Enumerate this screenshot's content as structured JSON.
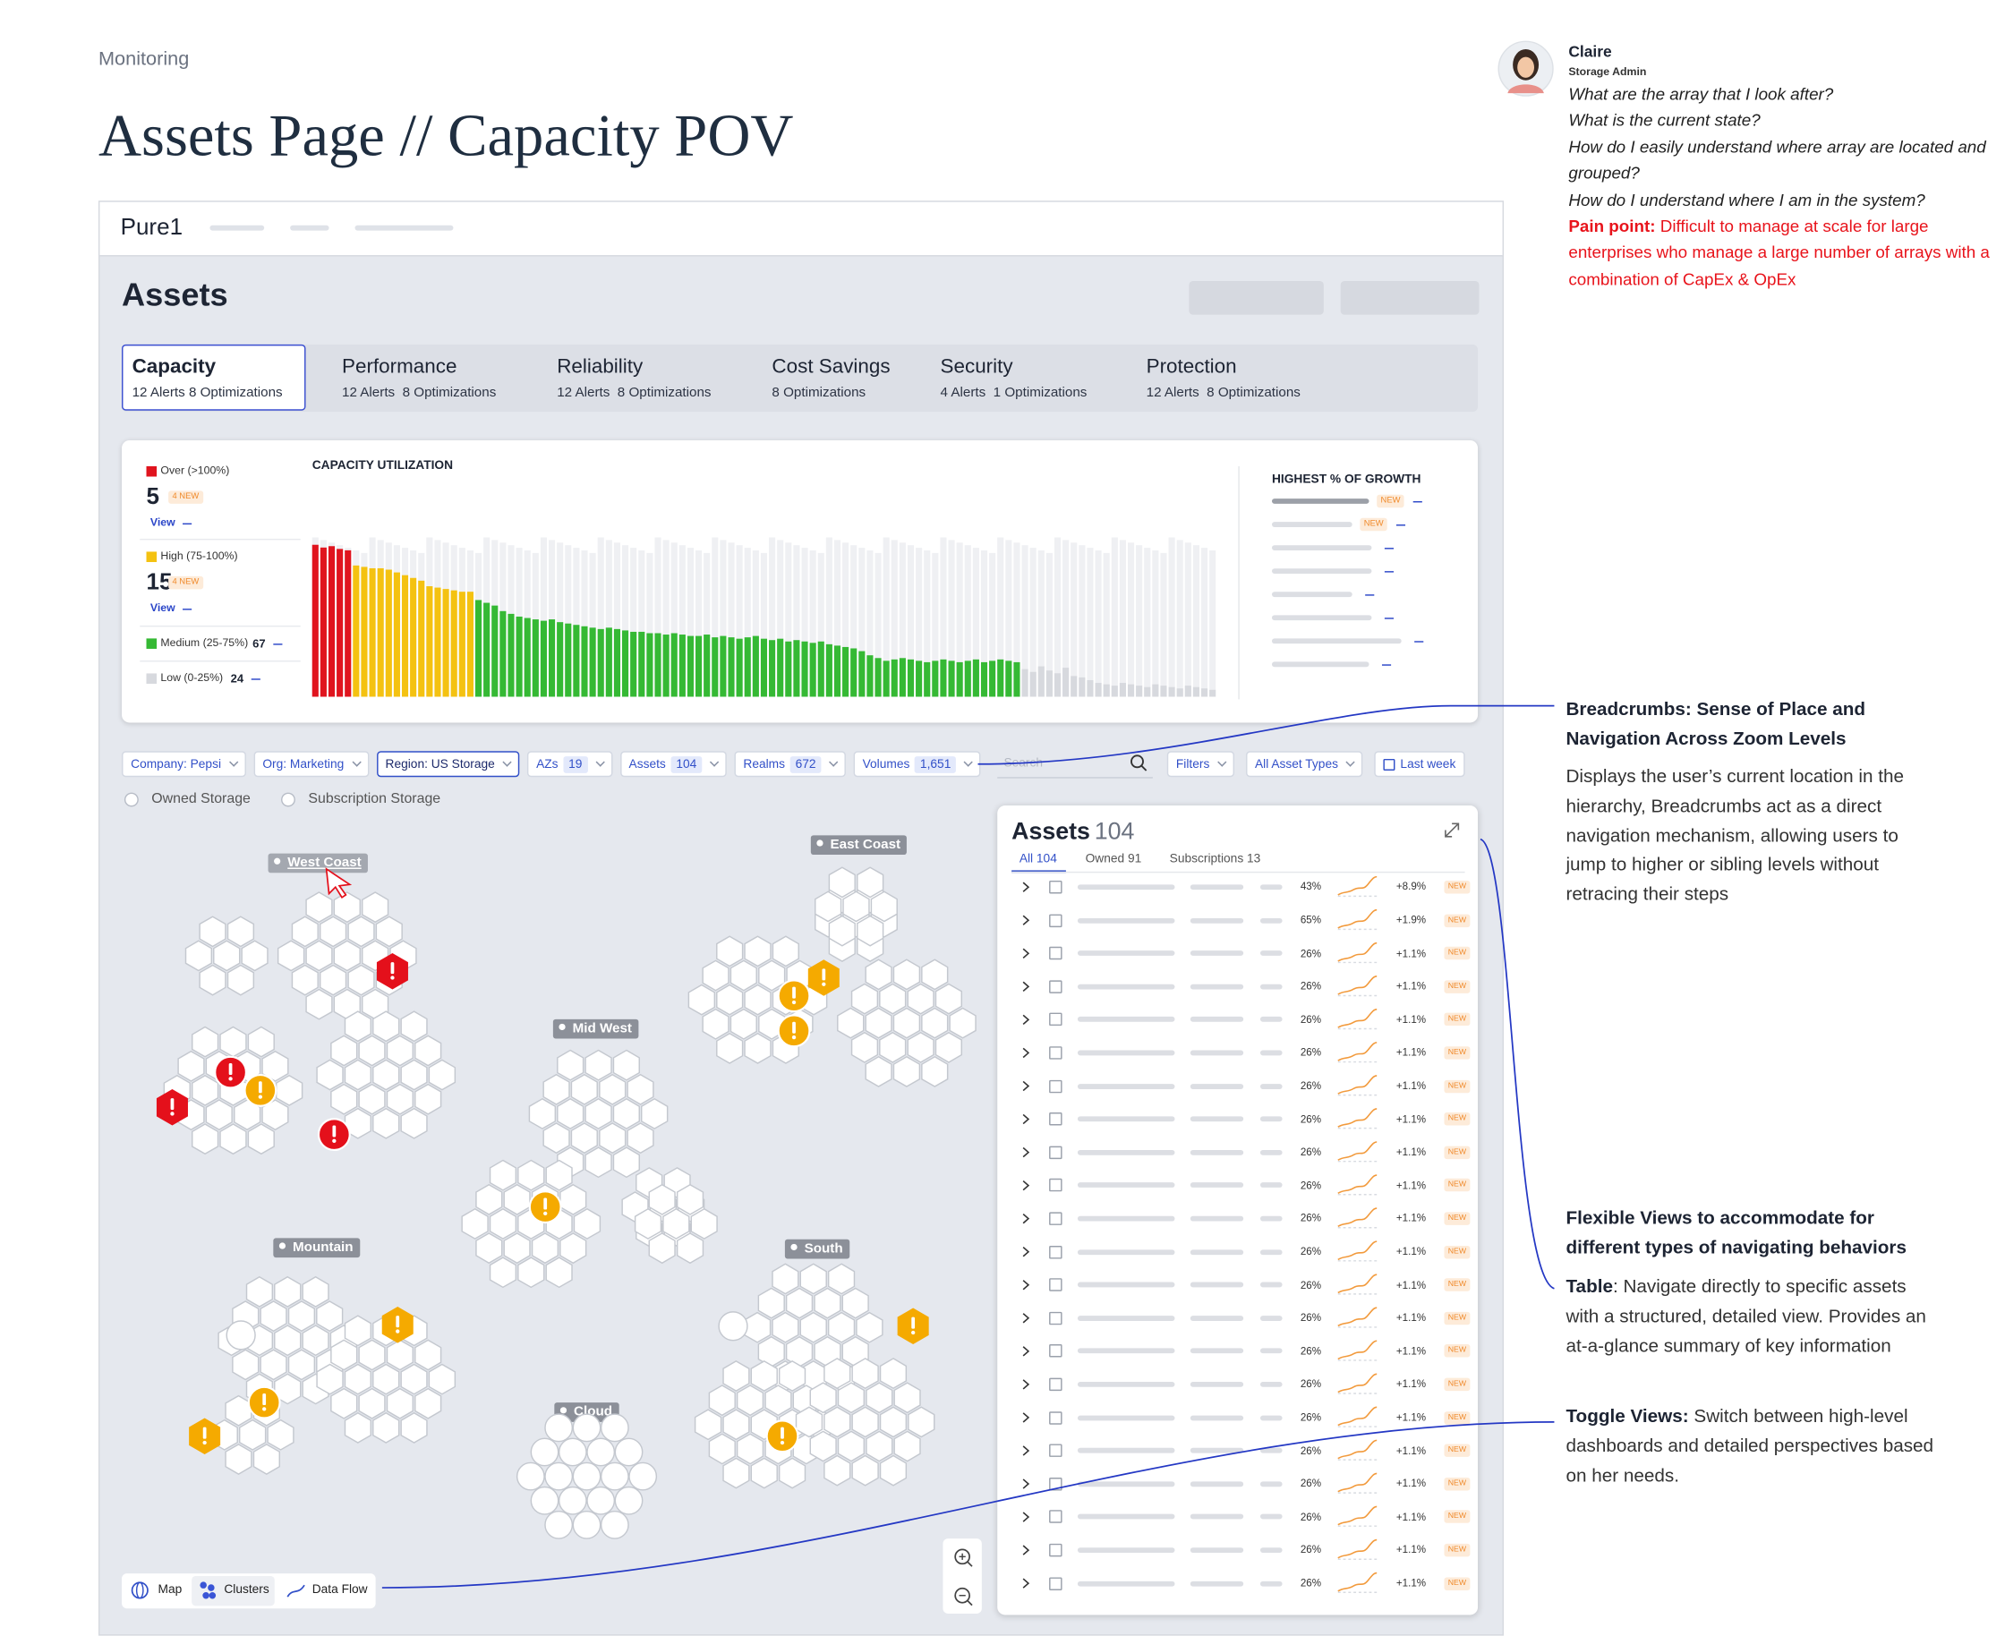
{
  "header": {
    "breadcrumb": "Monitoring",
    "title": "Assets Page // Capacity POV"
  },
  "app": {
    "brand": "Pure1",
    "page_title": "Assets",
    "tabs": [
      {
        "name": "Capacity",
        "detail": "12 Alerts 8 Optimizations"
      },
      {
        "name": "Performance",
        "detail": "12 Alerts  8 Optimizations"
      },
      {
        "name": "Reliability",
        "detail": "12 Alerts  8 Optimizations"
      },
      {
        "name": "Cost Savings",
        "detail": "8 Optimizations"
      },
      {
        "name": "Security",
        "detail": "4 Alerts  1 Optimizations"
      },
      {
        "name": "Protection",
        "detail": "12 Alerts  8 Optimizations"
      }
    ],
    "capacity_panel": {
      "legend": [
        {
          "label": "Over (>100%)",
          "count": 5,
          "badge": "4 NEW",
          "link": "View"
        },
        {
          "label": "High (75-100%)",
          "count": 15,
          "badge": "4 NEW",
          "link": "View"
        },
        {
          "label": "Medium (25-75%)",
          "count": 67
        },
        {
          "label": "Low (0-25%)",
          "count": 24
        }
      ],
      "chart_title": "CAPACITY UTILIZATION",
      "ylim": [
        0,
        120
      ],
      "values": [
        110,
        108,
        109,
        107,
        106,
        95,
        94,
        93,
        93,
        92,
        90,
        88,
        86,
        84,
        80,
        79,
        78,
        77,
        76,
        76,
        70,
        68,
        66,
        62,
        60,
        58,
        57,
        56,
        55,
        56,
        54,
        53,
        52,
        51,
        50,
        49,
        50,
        49,
        48,
        47,
        47,
        46,
        46,
        45,
        46,
        45,
        44,
        44,
        45,
        43,
        44,
        43,
        42,
        43,
        44,
        42,
        41,
        42,
        40,
        41,
        40,
        39,
        40,
        38,
        37,
        36,
        35,
        33,
        30,
        28,
        26,
        27,
        28,
        27,
        26,
        25,
        26,
        27,
        26,
        25,
        26,
        27,
        25,
        26,
        27,
        26,
        25,
        20,
        18,
        22,
        19,
        17,
        21,
        15,
        14,
        12,
        10,
        9,
        8,
        10,
        9,
        8,
        7,
        9,
        8,
        7,
        6,
        8,
        7,
        6,
        5
      ],
      "growth_title": "HIGHEST % OF GROWTH",
      "growth_badges": [
        "NEW",
        "NEW"
      ]
    },
    "filters": [
      {
        "label": "Company: Pepsi"
      },
      {
        "label": "Org: Marketing"
      },
      {
        "label": "Region: US Storage"
      },
      {
        "label": "AZs",
        "count": "19"
      },
      {
        "label": "Assets",
        "count": "104"
      },
      {
        "label": "Realms",
        "count": "672"
      },
      {
        "label": "Volumes",
        "count": "1,651"
      }
    ],
    "search_placeholder": "Search",
    "filter_buttons": [
      "Filters",
      "All Asset Types",
      "Last week"
    ],
    "storage_options": [
      "Owned Storage",
      "Subscription Storage"
    ],
    "regions": [
      "West Coast",
      "East Coast",
      "Mid West",
      "Mountain",
      "South",
      "Cloud"
    ],
    "view_toggle": [
      "Map",
      "Clusters",
      "Data Flow"
    ],
    "assets_table": {
      "title": "Assets",
      "count": "104",
      "tabs": [
        "All 104",
        "Owned 91",
        "Subscriptions 13"
      ],
      "rows": [
        {
          "util": "43%",
          "growth": "+8.9%",
          "badge": "NEW"
        },
        {
          "util": "65%",
          "growth": "+1.9%",
          "badge": "NEW"
        },
        {
          "util": "26%",
          "growth": "+1.1%",
          "badge": "NEW"
        },
        {
          "util": "26%",
          "growth": "+1.1%",
          "badge": "NEW"
        },
        {
          "util": "26%",
          "growth": "+1.1%",
          "badge": "NEW"
        },
        {
          "util": "26%",
          "growth": "+1.1%",
          "badge": "NEW"
        },
        {
          "util": "26%",
          "growth": "+1.1%",
          "badge": "NEW"
        },
        {
          "util": "26%",
          "growth": "+1.1%",
          "badge": "NEW"
        },
        {
          "util": "26%",
          "growth": "+1.1%",
          "badge": "NEW"
        },
        {
          "util": "26%",
          "growth": "+1.1%",
          "badge": "NEW"
        },
        {
          "util": "26%",
          "growth": "+1.1%",
          "badge": "NEW"
        },
        {
          "util": "26%",
          "growth": "+1.1%",
          "badge": "NEW"
        },
        {
          "util": "26%",
          "growth": "+1.1%",
          "badge": "NEW"
        },
        {
          "util": "26%",
          "growth": "+1.1%",
          "badge": "NEW"
        },
        {
          "util": "26%",
          "growth": "+1.1%",
          "badge": "NEW"
        },
        {
          "util": "26%",
          "growth": "+1.1%",
          "badge": "NEW"
        },
        {
          "util": "26%",
          "growth": "+1.1%",
          "badge": "NEW"
        },
        {
          "util": "26%",
          "growth": "+1.1%",
          "badge": "NEW"
        },
        {
          "util": "26%",
          "growth": "+1.1%",
          "badge": "NEW"
        },
        {
          "util": "26%",
          "growth": "+1.1%",
          "badge": "NEW"
        },
        {
          "util": "26%",
          "growth": "+1.1%",
          "badge": "NEW"
        },
        {
          "util": "26%",
          "growth": "+1.1%",
          "badge": "NEW"
        }
      ]
    }
  },
  "persona": {
    "name": "Claire",
    "role": "Storage Admin",
    "questions": [
      "What are the array that I look after?",
      "What is the current state?",
      "How do I easily understand where array are located and grouped?",
      "How do I understand where I am in the system?"
    ],
    "pain_label": "Pain point:",
    "pain_text": " Difficult to manage at scale for large enterprises who manage a large number of arrays with a combination of CapEx & OpEx"
  },
  "annotations": [
    {
      "title": "Breadcrumbs: Sense of Place and Navigation Across Zoom Levels",
      "body": "Displays the user’s current location in the hierarchy, Breadcrumbs act as a direct navigation mechanism, allowing users to jump to higher or sibling levels without retracing their steps"
    },
    {
      "title": "Flexible Views to accommodate for different types of navigating behaviors",
      "items": [
        {
          "label": "Table",
          "text": ": Navigate directly to specific assets with a structured, detailed view. Provides an at-a-glance summary of key information"
        },
        {
          "label": "Toggle Views:",
          "text": " Switch between high-level dashboards and detailed perspectives based on her needs."
        }
      ]
    }
  ]
}
